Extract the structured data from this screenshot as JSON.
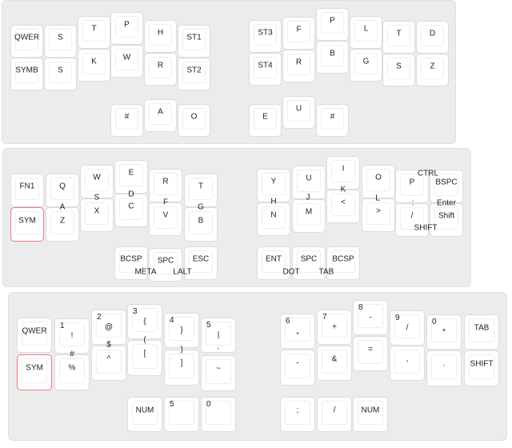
{
  "layers": [
    {
      "keys": [
        {
          "label": "QWER"
        },
        {
          "label": "SYMB"
        },
        {
          "label": "S"
        },
        {
          "label": "S"
        },
        {
          "label": "T"
        },
        {
          "label": "K"
        },
        {
          "label": "P"
        },
        {
          "label": "W"
        },
        {
          "label": "H"
        },
        {
          "label": "R"
        },
        {
          "label": "ST1"
        },
        {
          "label": "ST2"
        },
        {
          "label": "#"
        },
        {
          "label": "A"
        },
        {
          "label": "O"
        },
        {
          "label": "ST3"
        },
        {
          "label": "ST4"
        },
        {
          "label": "F"
        },
        {
          "label": "R"
        },
        {
          "label": "P"
        },
        {
          "label": "B"
        },
        {
          "label": "L"
        },
        {
          "label": "G"
        },
        {
          "label": "T"
        },
        {
          "label": "S"
        },
        {
          "label": "D"
        },
        {
          "label": "Z"
        },
        {
          "label": "E"
        },
        {
          "label": "U"
        },
        {
          "label": "#"
        }
      ],
      "between": []
    },
    {
      "keys": [
        {
          "label": "FN1"
        },
        {
          "label": "SYM",
          "highlight": true
        },
        {
          "label": "Q"
        },
        {
          "label": "Z"
        },
        {
          "label": "W"
        },
        {
          "label": "X"
        },
        {
          "label": "E"
        },
        {
          "label": "C"
        },
        {
          "label": "R"
        },
        {
          "label": "V"
        },
        {
          "label": "T"
        },
        {
          "label": "B"
        },
        {
          "label": "BCSP"
        },
        {
          "label": "SPC"
        },
        {
          "label": "ESC"
        },
        {
          "label": "Y"
        },
        {
          "label": "N"
        },
        {
          "label": "U"
        },
        {
          "label": "M"
        },
        {
          "label": "I"
        },
        {
          "label": "<"
        },
        {
          "label": "O"
        },
        {
          "label": ">"
        },
        {
          "label": "P"
        },
        {
          "label": "/"
        },
        {
          "label": "BSPC"
        },
        {
          "label": "Shift"
        },
        {
          "label": "ENT"
        },
        {
          "label": "SPC"
        },
        {
          "label": "BCSP"
        }
      ],
      "between": [
        "S",
        "A",
        "D",
        "F",
        "G",
        "META",
        "LALT",
        "H",
        "J",
        "K",
        "L",
        ":",
        "Enter",
        "CTRL",
        "SHIFT",
        "DOT",
        "TAB"
      ]
    },
    {
      "keys": [
        {
          "label": "QWER"
        },
        {
          "label": "SYM",
          "highlight": true
        },
        {
          "num": "1",
          "label": "!"
        },
        {
          "label": "%"
        },
        {
          "num": "2",
          "label": "@"
        },
        {
          "label": "^"
        },
        {
          "num": "3",
          "label": "{"
        },
        {
          "label": "["
        },
        {
          "num": "4",
          "label": "}"
        },
        {
          "label": "]"
        },
        {
          "num": "5",
          "label": "|"
        },
        {
          "label": "~"
        },
        {
          "label": "NUM"
        },
        {
          "num": "5",
          "label": ""
        },
        {
          "num": "0",
          "label": ""
        },
        {
          "num": "6",
          "label": "„"
        },
        {
          "label": "-"
        },
        {
          "num": "7",
          "label": "+"
        },
        {
          "label": "&"
        },
        {
          "num": "8",
          "label": "-"
        },
        {
          "label": "="
        },
        {
          "num": "9",
          "label": "/"
        },
        {
          "label": ","
        },
        {
          "num": "0",
          "label": "*"
        },
        {
          "label": "."
        },
        {
          "label": "TAB"
        },
        {
          "label": "SHIFT"
        },
        {
          "label": ";"
        },
        {
          "label": "/"
        },
        {
          "label": "NUM"
        }
      ],
      "between": [
        "#",
        "$",
        "(",
        ")",
        "`"
      ]
    }
  ],
  "colors": {
    "panel": "#ececec",
    "key": "#ffffff",
    "highlight_border": "#ee7b7b"
  }
}
